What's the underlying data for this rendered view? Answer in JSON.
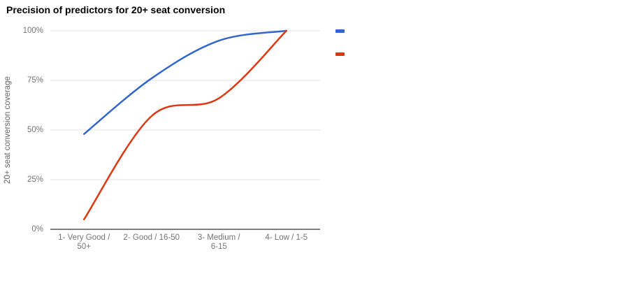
{
  "chart_data": {
    "type": "line",
    "title": "Precision of predictors for 20+ seat conversion",
    "ylabel": "20+ seat conversion coverage",
    "xlabel": "",
    "categories": [
      "1- Very Good / 50+",
      "2- Good / 16-50",
      "3- Medium / 6-15",
      "4- Low / 1-5"
    ],
    "x_tick_lines": [
      [
        "1- Very Good /",
        "50+"
      ],
      [
        "2- Good / 16-50"
      ],
      [
        "3- Medium /",
        "6-15"
      ],
      [
        "4- Low / 1-5"
      ]
    ],
    "y_tick_labels": [
      "0%",
      "25%",
      "50%",
      "75%",
      "100%"
    ],
    "y_tick_values": [
      0,
      25,
      50,
      75,
      100
    ],
    "ylim": [
      0,
      100
    ],
    "grid": true,
    "line_style": "smooth",
    "legend_position": "right",
    "series": [
      {
        "name": "",
        "color": "#3366cc",
        "values": [
          48,
          76,
          95,
          100
        ]
      },
      {
        "name": "",
        "color": "#dc3912",
        "values": [
          5,
          57,
          66,
          100
        ]
      }
    ]
  },
  "colors": {
    "background": "#ffffff",
    "title": "#000000",
    "tick_label": "#757575",
    "axis_title": "#666666",
    "gridline": "#e3e3e3",
    "axis_line": "#333333",
    "series1": "#3366cc",
    "series2": "#dc3912"
  }
}
